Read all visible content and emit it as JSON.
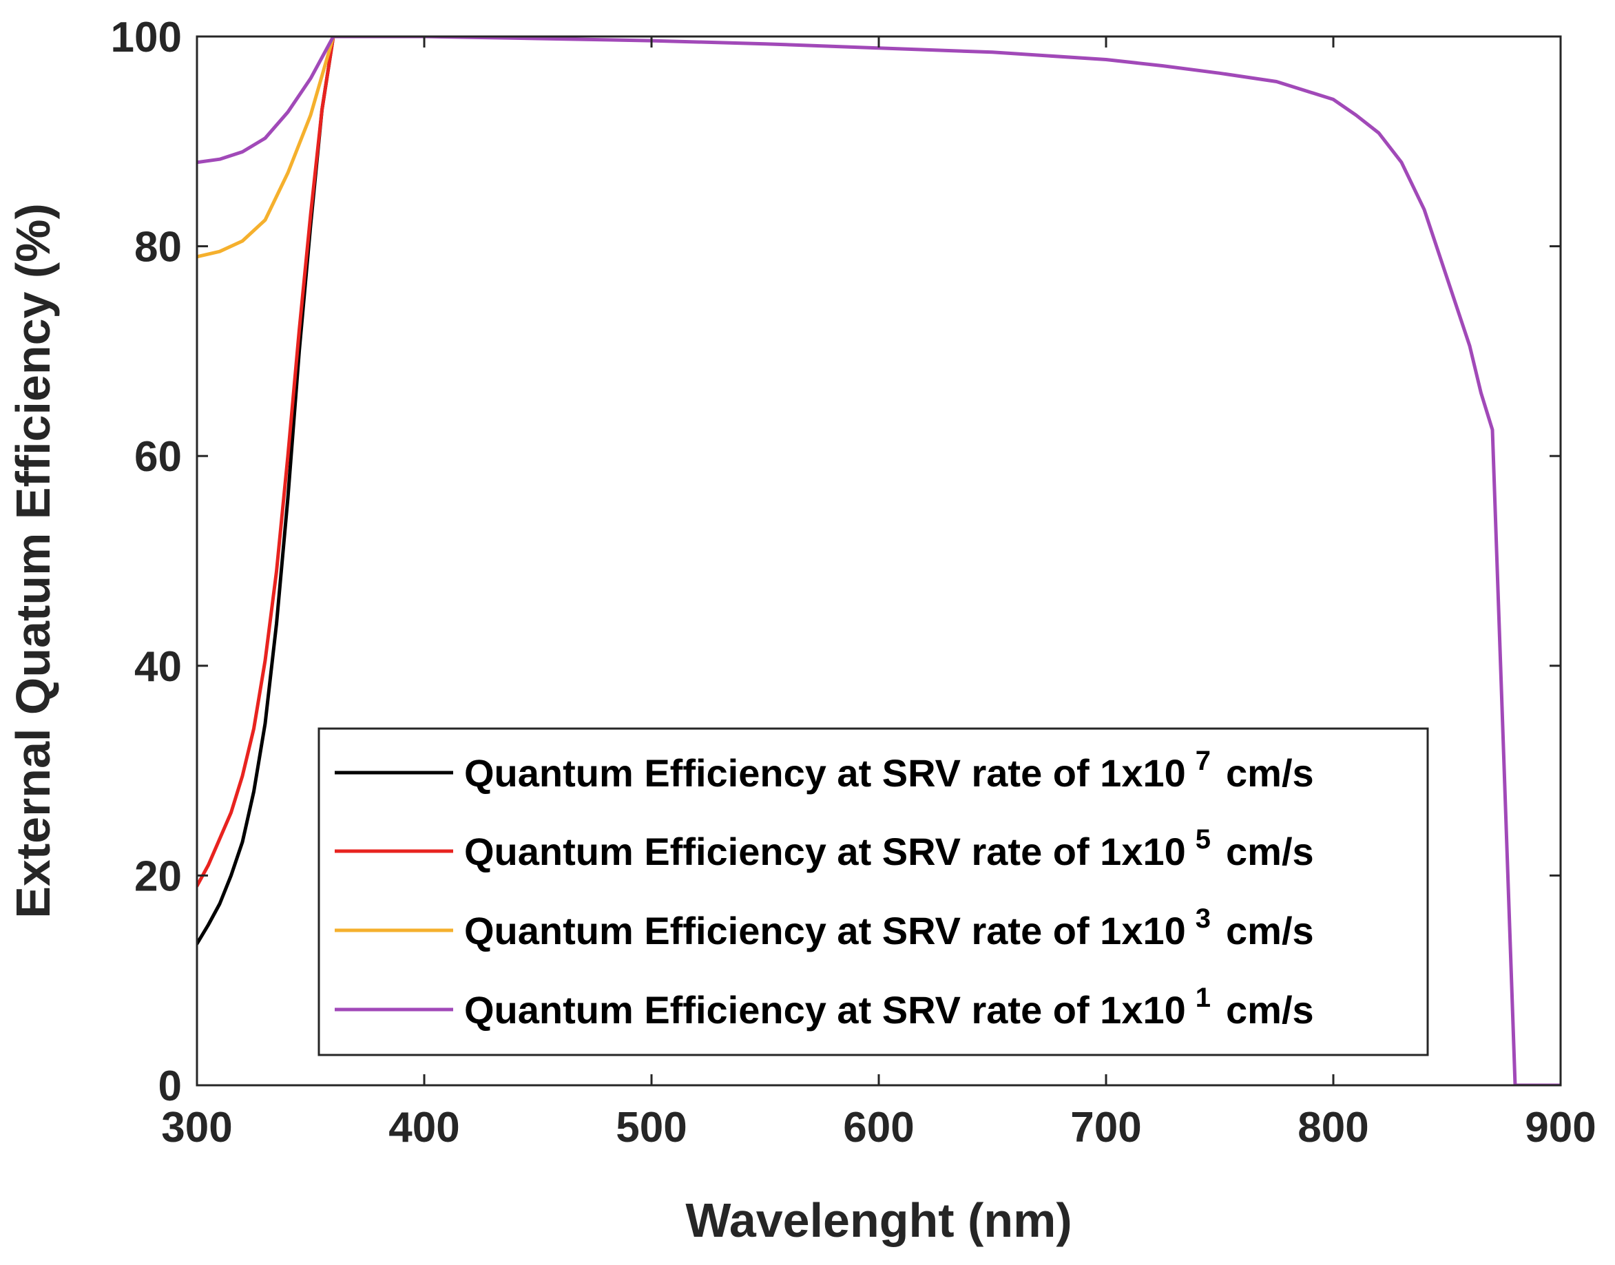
{
  "chart_data": {
    "type": "line",
    "title": "",
    "xlabel": "Wavelenght (nm)",
    "ylabel": "External Quatum Efficiency (%)",
    "xlim": [
      300,
      900
    ],
    "ylim": [
      0,
      100
    ],
    "xticks": [
      300,
      400,
      500,
      600,
      700,
      800,
      900
    ],
    "yticks": [
      0,
      20,
      40,
      60,
      80,
      100
    ],
    "grid": false,
    "legend_position": "bottom-center",
    "series": [
      {
        "name": "Quantum Efficiency at SRV rate of 1x10",
        "exponent": "7",
        "unit": "cm/s",
        "color": "#000000",
        "x": [
          300,
          305,
          310,
          315,
          320,
          325,
          330,
          335,
          340,
          345,
          350,
          355,
          360
        ],
        "y": [
          13.5,
          15.3,
          17.3,
          20,
          23.2,
          28,
          34.5,
          44,
          56,
          70,
          82,
          93,
          100
        ]
      },
      {
        "name": "Quantum Efficiency at SRV rate of 1x10",
        "exponent": "5",
        "unit": "cm/s",
        "color": "#e8231f",
        "x": [
          300,
          305,
          310,
          315,
          320,
          325,
          330,
          335,
          340,
          345,
          350,
          355,
          360
        ],
        "y": [
          19,
          21,
          23.5,
          26,
          29.5,
          34,
          40.5,
          49,
          60,
          72,
          83,
          93,
          100
        ]
      },
      {
        "name": "Quantum Efficiency at SRV rate of 1x10",
        "exponent": "3",
        "unit": "cm/s",
        "color": "#f5b02d",
        "x": [
          300,
          310,
          320,
          330,
          340,
          350,
          360
        ],
        "y": [
          79,
          79.5,
          80.5,
          82.5,
          87,
          92.5,
          100
        ]
      },
      {
        "name": "Quantum Efficiency at SRV rate of 1x10",
        "exponent": "1",
        "unit": "cm/s",
        "color": "#a149b8",
        "x": [
          300,
          310,
          320,
          330,
          340,
          350,
          360,
          380,
          400,
          450,
          500,
          550,
          600,
          650,
          700,
          725,
          750,
          775,
          800,
          810,
          820,
          830,
          840,
          850,
          860,
          865,
          870,
          880,
          890,
          900
        ],
        "y": [
          88,
          88.3,
          89,
          90.3,
          92.8,
          96,
          100,
          100,
          100,
          99.8,
          99.6,
          99.3,
          98.9,
          98.5,
          97.8,
          97.2,
          96.5,
          95.7,
          94,
          92.5,
          90.8,
          88,
          83.5,
          77,
          70.5,
          66,
          62.5,
          0,
          0,
          0
        ]
      }
    ]
  }
}
